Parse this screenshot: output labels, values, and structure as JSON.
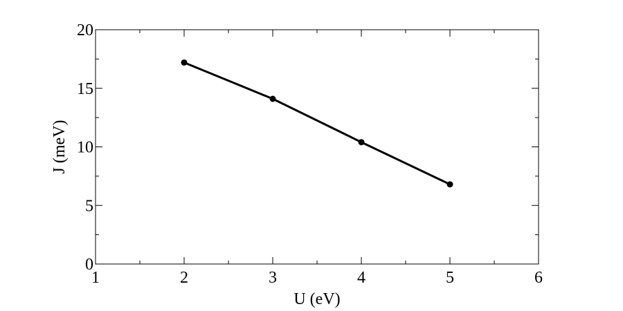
{
  "chart_data": {
    "type": "line",
    "title": "",
    "xlabel": "U (eV)",
    "ylabel": "J (meV)",
    "xlim": [
      1,
      6
    ],
    "ylim": [
      0,
      20
    ],
    "x_ticks": [
      1,
      2,
      3,
      4,
      5,
      6
    ],
    "y_ticks": [
      0,
      5,
      10,
      15,
      20
    ],
    "x_minor_ticks": [
      1.5,
      2.5,
      3.5,
      4.5,
      5.5
    ],
    "y_minor_ticks": [
      2.5,
      7.5,
      12.5,
      17.5
    ],
    "grid": false,
    "legend": "none",
    "series": [
      {
        "x": [
          2,
          3,
          4,
          5
        ],
        "values": [
          17.2,
          14.1,
          10.4,
          6.8
        ],
        "color": "#000000",
        "marker": "circle"
      }
    ]
  }
}
